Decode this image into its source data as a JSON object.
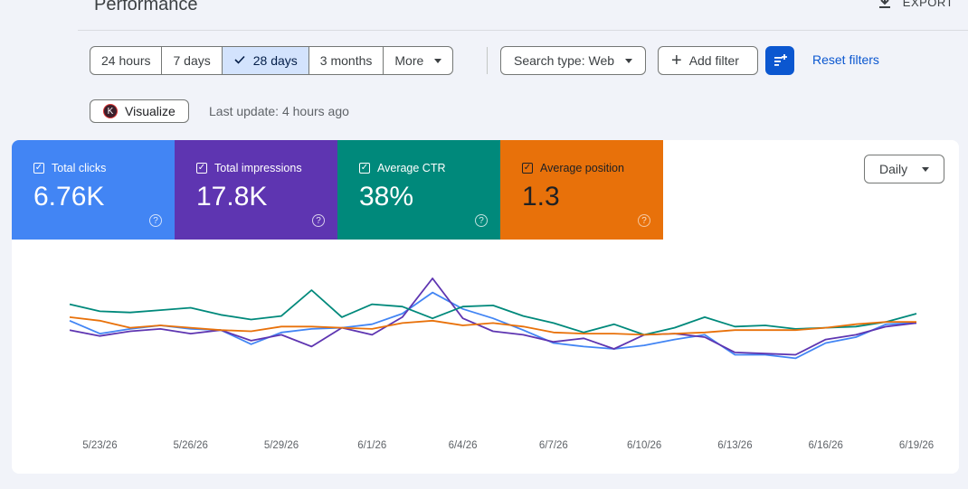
{
  "header": {
    "title": "Performance",
    "export_label": "EXPORT"
  },
  "date_range": {
    "options": [
      {
        "label": "24 hours",
        "selected": false
      },
      {
        "label": "7 days",
        "selected": false
      },
      {
        "label": "28 days",
        "selected": true
      },
      {
        "label": "3 months",
        "selected": false
      },
      {
        "label": "More",
        "selected": false
      }
    ]
  },
  "filters": {
    "search_type": "Search type: Web",
    "add_filter": "Add filter",
    "reset": "Reset filters"
  },
  "visualize_label": "Visualize",
  "last_update": "Last update: 4 hours ago",
  "metrics": [
    {
      "label": "Total clicks",
      "value": "6.76K",
      "color": "#4285f4",
      "checked": true
    },
    {
      "label": "Total impressions",
      "value": "17.8K",
      "color": "#5e35b1",
      "checked": true
    },
    {
      "label": "Average CTR",
      "value": "38%",
      "color": "#00897b",
      "checked": true
    },
    {
      "label": "Average position",
      "value": "1.3",
      "color": "#e8710a",
      "checked": true
    }
  ],
  "granularity": "Daily",
  "chart_data": {
    "type": "line",
    "x": [
      "5/22/26",
      "5/23/26",
      "5/24/26",
      "5/25/26",
      "5/26/26",
      "5/27/26",
      "5/28/26",
      "5/29/26",
      "5/30/26",
      "5/31/26",
      "6/1/26",
      "6/2/26",
      "6/3/26",
      "6/4/26",
      "6/5/26",
      "6/6/26",
      "6/7/26",
      "6/8/26",
      "6/9/26",
      "6/10/26",
      "6/11/26",
      "6/12/26",
      "6/13/26",
      "6/14/26",
      "6/15/26",
      "6/16/26",
      "6/17/26",
      "6/18/26",
      "6/19/26"
    ],
    "x_tick_labels": [
      "5/23/26",
      "5/26/26",
      "5/29/26",
      "6/1/26",
      "6/4/26",
      "6/7/26",
      "6/10/26",
      "6/13/26",
      "6/16/26",
      "6/19/26"
    ],
    "series": [
      {
        "metric": "Total clicks",
        "color": "#4285f4",
        "values": [
          54,
          43,
          47,
          50,
          47,
          46,
          34,
          44,
          47,
          48,
          51,
          60,
          78,
          64,
          56,
          46,
          35,
          32,
          30,
          33,
          38,
          42,
          25,
          25,
          22,
          35,
          40,
          51,
          52
        ]
      },
      {
        "metric": "Total impressions",
        "color": "#5e35b1",
        "values": [
          46,
          41,
          45,
          47,
          43,
          46,
          37,
          42,
          32,
          48,
          42,
          57,
          90,
          56,
          45,
          42,
          36,
          39,
          30,
          42,
          43,
          40,
          27,
          26,
          25,
          38,
          42,
          49,
          52
        ]
      },
      {
        "metric": "Average CTR",
        "color": "#00897b",
        "values": [
          68,
          62,
          61,
          63,
          65,
          59,
          55,
          58,
          80,
          57,
          68,
          66,
          56,
          66,
          67,
          58,
          52,
          44,
          51,
          42,
          48,
          57,
          49,
          50,
          47,
          48,
          49,
          53,
          60
        ]
      },
      {
        "metric": "Average position",
        "color": "#e8710a",
        "values": [
          57,
          54,
          48,
          50,
          48,
          46,
          45,
          49,
          49,
          48,
          47,
          52,
          54,
          50,
          52,
          49,
          44,
          43,
          43,
          42,
          43,
          44,
          46,
          46,
          46,
          48,
          51,
          53,
          53
        ]
      }
    ]
  }
}
